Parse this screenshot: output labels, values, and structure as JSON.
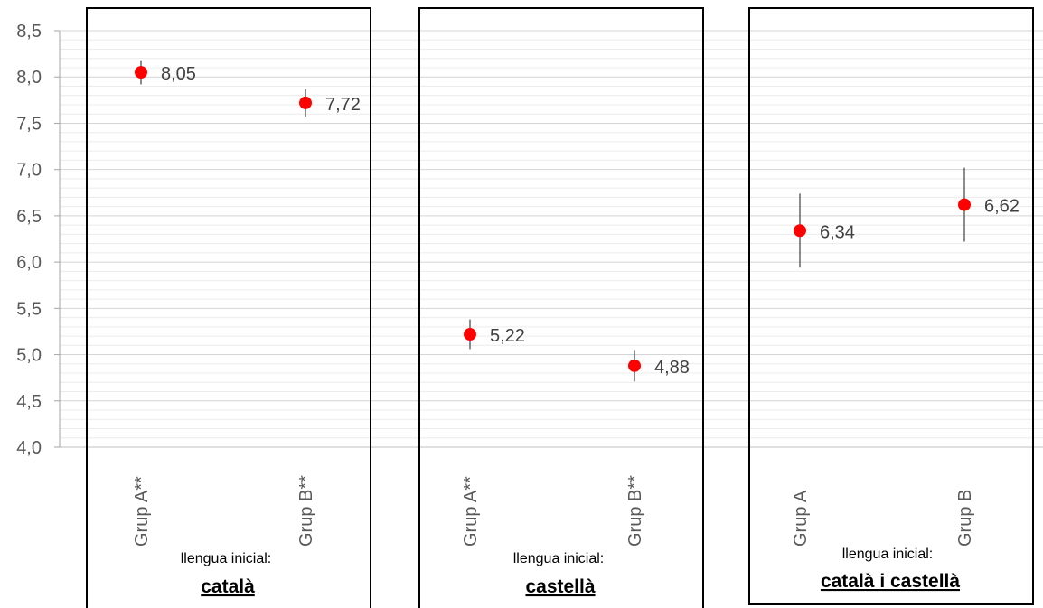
{
  "chart_data": {
    "type": "scatter",
    "ylim": [
      4.0,
      8.5
    ],
    "y_ticks": [
      "4,0",
      "4,5",
      "5,0",
      "5,5",
      "6,0",
      "6,5",
      "7,0",
      "7,5",
      "8,0",
      "8,5"
    ],
    "y_tick_values": [
      4.0,
      4.5,
      5.0,
      5.5,
      6.0,
      6.5,
      7.0,
      7.5,
      8.0,
      8.5
    ],
    "grid": true,
    "marker_color": "#ff0000",
    "groups": [
      {
        "subtitle": "llengua inicial:",
        "title": "català",
        "points": [
          {
            "category": "Grup A**",
            "value": 8.05,
            "label": "8,05",
            "err_low": 7.92,
            "err_high": 8.18
          },
          {
            "category": "Grup B**",
            "value": 7.72,
            "label": "7,72",
            "err_low": 7.57,
            "err_high": 7.87
          }
        ]
      },
      {
        "subtitle": "llengua inicial:",
        "title": "castellà",
        "points": [
          {
            "category": "Grup A**",
            "value": 5.22,
            "label": "5,22",
            "err_low": 5.06,
            "err_high": 5.38
          },
          {
            "category": "Grup B**",
            "value": 4.88,
            "label": "4,88",
            "err_low": 4.71,
            "err_high": 5.05
          }
        ]
      },
      {
        "subtitle": "llengua inicial:",
        "title": "català i castellà",
        "points": [
          {
            "category": "Grup A",
            "value": 6.34,
            "label": "6,34",
            "err_low": 5.94,
            "err_high": 6.74
          },
          {
            "category": "Grup B",
            "value": 6.62,
            "label": "6,62",
            "err_low": 6.22,
            "err_high": 7.02
          }
        ]
      }
    ]
  }
}
